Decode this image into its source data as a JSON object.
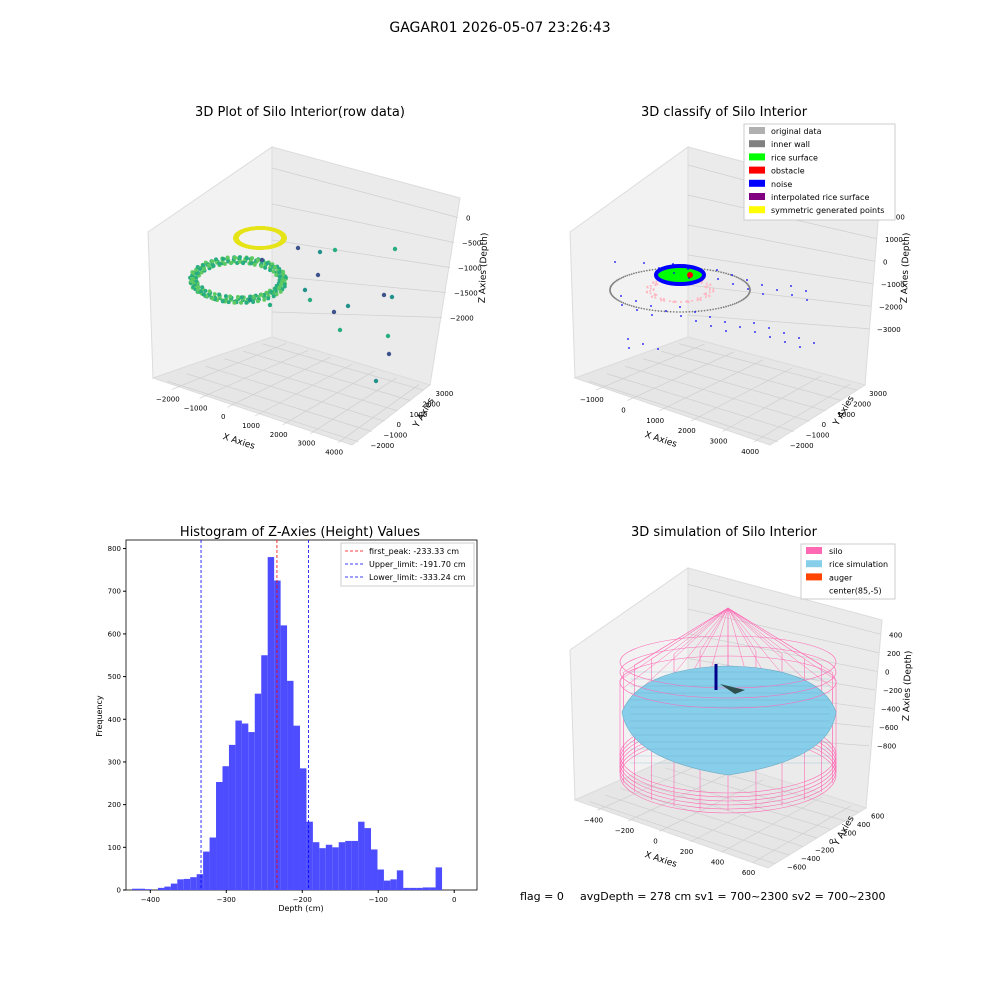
{
  "suptitle": "GAGAR01 2026-05-07 23:26:43",
  "footer": {
    "flag": "flag = 0",
    "stats": "avgDepth = 278 cm  sv1 = 700~2300  sv2 = 700~2300"
  },
  "chart_data": [
    {
      "type": "scatter",
      "subtype": "3d",
      "title": "3D Plot of Silo Interior(row data)",
      "xlabel": "X Axies",
      "ylabel": "Y Axies",
      "zlabel": "Z Axies (Depth)",
      "xticks": [
        "−2000",
        "−1000",
        "0",
        "1000",
        "2000",
        "3000",
        "4000"
      ],
      "yticks": [
        "−2000",
        "−1000",
        "0",
        "1000",
        "2000",
        "3000"
      ],
      "zticks": [
        "0",
        "−500",
        "−1000",
        "−1500",
        "−2000"
      ],
      "colormap": "viridis",
      "grid": true
    },
    {
      "type": "scatter",
      "subtype": "3d",
      "title": "3D classify of Silo Interior",
      "xlabel": "X Axies",
      "ylabel": "Y Axies",
      "zlabel": "Z Axies (Depth)",
      "xticks": [
        "−1000",
        "0",
        "1000",
        "2000",
        "3000",
        "4000"
      ],
      "yticks": [
        "−2000",
        "−1000",
        "0",
        "1000",
        "2000",
        "3000"
      ],
      "zticks": [
        "2000",
        "1000",
        "0",
        "−1000",
        "−2000",
        "−3000"
      ],
      "legend": {
        "position": "top-right",
        "items": [
          {
            "label": "original data",
            "color": "#b0b0b0"
          },
          {
            "label": "inner wall",
            "color": "#808080"
          },
          {
            "label": "rice surface",
            "color": "#00ff00"
          },
          {
            "label": "obstacle",
            "color": "#ff0000"
          },
          {
            "label": "noise",
            "color": "#0000ff"
          },
          {
            "label": "interpolated rice surface",
            "color": "#800080"
          },
          {
            "label": "symmetric generated points",
            "color": "#ffff00"
          }
        ]
      },
      "grid": true
    },
    {
      "type": "histogram",
      "title": "Histogram of Z-Axies (Height) Values",
      "xlabel": "Depth (cm)",
      "ylabel": "Frequency",
      "xlim": [
        -432,
        30
      ],
      "ylim": [
        0,
        820
      ],
      "xticks": [
        -400,
        -300,
        -200,
        -100,
        0
      ],
      "xtick_labels": [
        "−400",
        "−300",
        "−200",
        "−100",
        "0"
      ],
      "yticks": [
        0,
        100,
        200,
        300,
        400,
        500,
        600,
        700,
        800
      ],
      "bar_color": "#4d4dff",
      "bins": {
        "start": -424,
        "width": 8.5,
        "counts": [
          3,
          3,
          2,
          0,
          5,
          8,
          15,
          25,
          26,
          30,
          37,
          90,
          123,
          253,
          290,
          340,
          397,
          390,
          370,
          460,
          550,
          780,
          725,
          620,
          490,
          385,
          285,
          160,
          112,
          98,
          106,
          100,
          112,
          115,
          115,
          160,
          145,
          95,
          48,
          22,
          25,
          46,
          5,
          5,
          5,
          6,
          6,
          53
        ]
      },
      "vlines": [
        {
          "x": -233.33,
          "color": "#ff0000",
          "label": "first_peak: -233.33 cm"
        },
        {
          "x": -191.7,
          "color": "#0000ff",
          "label": "Upper_limit: -191.70 cm"
        },
        {
          "x": -333.24,
          "color": "#0000ff",
          "label": "Lower_limit: -333.24 cm"
        }
      ],
      "legend": {
        "position": "top-right"
      }
    },
    {
      "type": "surface",
      "subtype": "3d",
      "title": "3D simulation of Silo Interior",
      "xlabel": "X Axies",
      "ylabel": "Y Axies",
      "zlabel": "Z Axies (Depth)",
      "xticks": [
        "−400",
        "−200",
        "0",
        "200",
        "400",
        "600"
      ],
      "yticks": [
        "−600",
        "−400",
        "−200",
        "0",
        "200",
        "400",
        "600"
      ],
      "zticks": [
        "400",
        "200",
        "0",
        "−200",
        "−400",
        "−600",
        "−800"
      ],
      "legend": {
        "position": "top-right",
        "items": [
          {
            "label": "silo",
            "color": "#ff69b4"
          },
          {
            "label": "rice simulation",
            "color": "#87ceeb"
          },
          {
            "label": "auger",
            "color": "#ff4500"
          },
          {
            "label": "center(85,-5)",
            "color": ""
          }
        ]
      },
      "grid": true
    }
  ]
}
